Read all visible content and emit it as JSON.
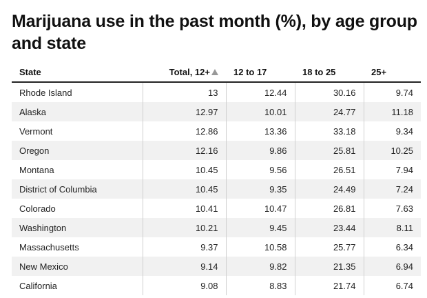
{
  "title": "Marijuana use in the past month (%), by age group and state",
  "table": {
    "columns": [
      "State",
      "Total, 12+",
      "12 to 17",
      "18 to 25",
      "25+"
    ],
    "sort": {
      "column": "Total, 12+",
      "direction": "descending"
    },
    "rows": [
      [
        "Rhode Island",
        "13",
        "12.44",
        "30.16",
        "9.74"
      ],
      [
        "Alaska",
        "12.97",
        "10.01",
        "24.77",
        "11.18"
      ],
      [
        "Vermont",
        "12.86",
        "13.36",
        "33.18",
        "9.34"
      ],
      [
        "Oregon",
        "12.16",
        "9.86",
        "25.81",
        "10.25"
      ],
      [
        "Montana",
        "10.45",
        "9.56",
        "26.51",
        "7.94"
      ],
      [
        "District of Columbia",
        "10.45",
        "9.35",
        "24.49",
        "7.24"
      ],
      [
        "Colorado",
        "10.41",
        "10.47",
        "26.81",
        "7.63"
      ],
      [
        "Washington",
        "10.21",
        "9.45",
        "23.44",
        "8.11"
      ],
      [
        "Massachusetts",
        "9.37",
        "10.58",
        "25.77",
        "6.34"
      ],
      [
        "New Mexico",
        "9.14",
        "9.82",
        "21.35",
        "6.94"
      ],
      [
        "California",
        "9.08",
        "8.83",
        "21.74",
        "6.74"
      ]
    ]
  },
  "chart_data": {
    "type": "table",
    "title": "Marijuana use in the past month (%), by age group and state",
    "columns": [
      "State",
      "Total, 12+",
      "12 to 17",
      "18 to 25",
      "25+"
    ],
    "categories": [
      "Rhode Island",
      "Alaska",
      "Vermont",
      "Oregon",
      "Montana",
      "District of Columbia",
      "Colorado",
      "Washington",
      "Massachusetts",
      "New Mexico",
      "California"
    ],
    "series": [
      {
        "name": "Total, 12+",
        "values": [
          13,
          12.97,
          12.86,
          12.16,
          10.45,
          10.45,
          10.41,
          10.21,
          9.37,
          9.14,
          9.08
        ]
      },
      {
        "name": "12 to 17",
        "values": [
          12.44,
          10.01,
          13.36,
          9.86,
          9.56,
          9.35,
          10.47,
          9.45,
          10.58,
          9.82,
          8.83
        ]
      },
      {
        "name": "18 to 25",
        "values": [
          30.16,
          24.77,
          33.18,
          25.81,
          26.51,
          24.49,
          26.81,
          23.44,
          25.77,
          21.35,
          21.74
        ]
      },
      {
        "name": "25+",
        "values": [
          9.74,
          11.18,
          9.34,
          10.25,
          7.94,
          7.24,
          7.63,
          8.11,
          6.34,
          6.94,
          6.74
        ]
      }
    ]
  }
}
